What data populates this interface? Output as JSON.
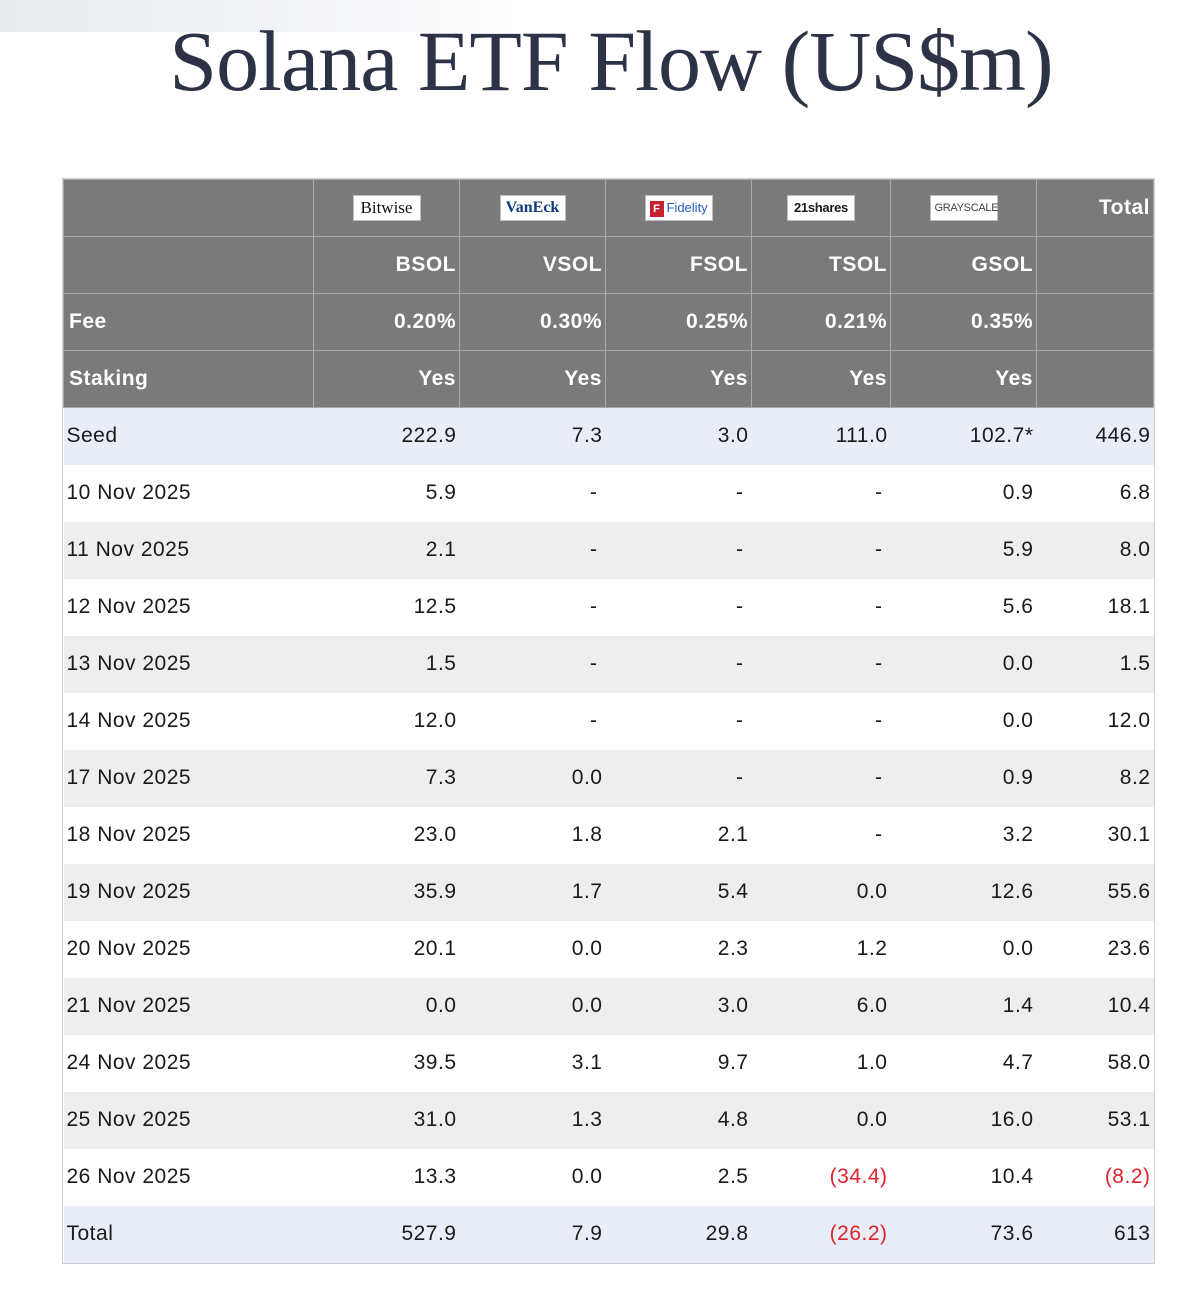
{
  "title": "Solana ETF Flow (US$m)",
  "header": {
    "logos": [
      {
        "text": "Bitwise",
        "icon": "bitwise-logo"
      },
      {
        "text": "VanEck",
        "icon": "vaneck-logo"
      },
      {
        "text": "Fidelity",
        "icon": "fidelity-logo"
      },
      {
        "text": "21shares",
        "icon": "21shares-logo"
      },
      {
        "text": "GRAYSCALE",
        "icon": "grayscale-logo"
      }
    ],
    "total_label": "Total",
    "tickers": [
      "BSOL",
      "VSOL",
      "FSOL",
      "TSOL",
      "GSOL"
    ],
    "fee_label": "Fee",
    "fees": [
      "0.20%",
      "0.30%",
      "0.25%",
      "0.21%",
      "0.35%"
    ],
    "staking_label": "Staking",
    "staking": [
      "Yes",
      "Yes",
      "Yes",
      "Yes",
      "Yes"
    ]
  },
  "rows": [
    {
      "label": "Seed",
      "values": [
        "222.9",
        "7.3",
        "3.0",
        "111.0",
        "102.7*",
        "446.9"
      ]
    },
    {
      "label": "10 Nov 2025",
      "values": [
        "5.9",
        "-",
        "-",
        "-",
        "0.9",
        "6.8"
      ]
    },
    {
      "label": "11 Nov 2025",
      "values": [
        "2.1",
        "-",
        "-",
        "-",
        "5.9",
        "8.0"
      ]
    },
    {
      "label": "12 Nov 2025",
      "values": [
        "12.5",
        "-",
        "-",
        "-",
        "5.6",
        "18.1"
      ]
    },
    {
      "label": "13 Nov 2025",
      "values": [
        "1.5",
        "-",
        "-",
        "-",
        "0.0",
        "1.5"
      ]
    },
    {
      "label": "14 Nov 2025",
      "values": [
        "12.0",
        "-",
        "-",
        "-",
        "0.0",
        "12.0"
      ]
    },
    {
      "label": "17 Nov 2025",
      "values": [
        "7.3",
        "0.0",
        "-",
        "-",
        "0.9",
        "8.2"
      ]
    },
    {
      "label": "18 Nov 2025",
      "values": [
        "23.0",
        "1.8",
        "2.1",
        "-",
        "3.2",
        "30.1"
      ]
    },
    {
      "label": "19 Nov 2025",
      "values": [
        "35.9",
        "1.7",
        "5.4",
        "0.0",
        "12.6",
        "55.6"
      ]
    },
    {
      "label": "20 Nov 2025",
      "values": [
        "20.1",
        "0.0",
        "2.3",
        "1.2",
        "0.0",
        "23.6"
      ]
    },
    {
      "label": "21 Nov 2025",
      "values": [
        "0.0",
        "0.0",
        "3.0",
        "6.0",
        "1.4",
        "10.4"
      ]
    },
    {
      "label": "24 Nov 2025",
      "values": [
        "39.5",
        "3.1",
        "9.7",
        "1.0",
        "4.7",
        "58.0"
      ]
    },
    {
      "label": "25 Nov 2025",
      "values": [
        "31.0",
        "1.3",
        "4.8",
        "0.0",
        "16.0",
        "53.1"
      ]
    },
    {
      "label": "26 Nov 2025",
      "values": [
        "13.3",
        "0.0",
        "2.5",
        "(34.4)",
        "10.4",
        "(8.2)"
      ]
    },
    {
      "label": "Total",
      "values": [
        "527.9",
        "7.9",
        "29.8",
        "(26.2)",
        "73.6",
        "613"
      ]
    }
  ],
  "colors": {
    "header_bg": "#7a7a7a",
    "highlight_row": "#e9edf7",
    "alt_row": "#eeeeee",
    "negative": "#e0222b",
    "title": "#2c3347"
  }
}
